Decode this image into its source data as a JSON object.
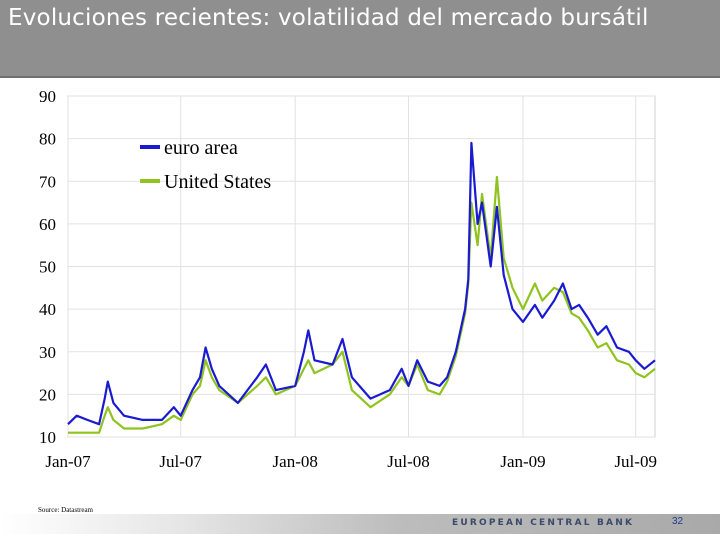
{
  "title": "Evoluciones recientes: volatilidad del mercado bursátil",
  "source": "Source: Datastream",
  "footer": {
    "bank_name": "EUROPEAN CENTRAL BANK",
    "page_number": "32"
  },
  "colors": {
    "euro_area": "#1a1ad0",
    "united_states": "#8fc31f",
    "title_bg": "#8f8f8f"
  },
  "chart_data": {
    "type": "line",
    "title": "",
    "xlabel": "",
    "ylabel": "",
    "ylim": [
      10,
      90
    ],
    "yticks": [
      10,
      20,
      30,
      40,
      50,
      60,
      70,
      80,
      90
    ],
    "xlim": [
      "2007-01-01",
      "2009-08-01"
    ],
    "xticks": [
      {
        "label": "Jan-07",
        "date": "2007-01-01"
      },
      {
        "label": "Jul-07",
        "date": "2007-07-01"
      },
      {
        "label": "Jan-08",
        "date": "2008-01-01"
      },
      {
        "label": "Jul-08",
        "date": "2008-07-01"
      },
      {
        "label": "Jan-09",
        "date": "2009-01-01"
      },
      {
        "label": "Jul-09",
        "date": "2009-07-01"
      }
    ],
    "grid": true,
    "legend": "top-left",
    "series": [
      {
        "name": "euro area",
        "color": "#1a1ad0",
        "points": [
          [
            "2007-01-01",
            13
          ],
          [
            "2007-01-15",
            15
          ],
          [
            "2007-02-01",
            14
          ],
          [
            "2007-02-20",
            13
          ],
          [
            "2007-03-01",
            19
          ],
          [
            "2007-03-06",
            23
          ],
          [
            "2007-03-15",
            18
          ],
          [
            "2007-04-01",
            15
          ],
          [
            "2007-05-01",
            14
          ],
          [
            "2007-06-01",
            14
          ],
          [
            "2007-06-20",
            17
          ],
          [
            "2007-07-01",
            15
          ],
          [
            "2007-07-20",
            21
          ],
          [
            "2007-08-01",
            24
          ],
          [
            "2007-08-10",
            31
          ],
          [
            "2007-08-20",
            26
          ],
          [
            "2007-09-01",
            22
          ],
          [
            "2007-10-01",
            18
          ],
          [
            "2007-11-01",
            24
          ],
          [
            "2007-11-15",
            27
          ],
          [
            "2007-12-01",
            21
          ],
          [
            "2008-01-01",
            22
          ],
          [
            "2008-01-15",
            30
          ],
          [
            "2008-01-22",
            35
          ],
          [
            "2008-02-01",
            28
          ],
          [
            "2008-03-01",
            27
          ],
          [
            "2008-03-17",
            33
          ],
          [
            "2008-04-01",
            24
          ],
          [
            "2008-05-01",
            19
          ],
          [
            "2008-06-01",
            21
          ],
          [
            "2008-06-20",
            26
          ],
          [
            "2008-07-01",
            22
          ],
          [
            "2008-07-15",
            28
          ],
          [
            "2008-08-01",
            23
          ],
          [
            "2008-08-20",
            22
          ],
          [
            "2008-09-01",
            24
          ],
          [
            "2008-09-15",
            30
          ],
          [
            "2008-09-30",
            40
          ],
          [
            "2008-10-05",
            47
          ],
          [
            "2008-10-10",
            79
          ],
          [
            "2008-10-20",
            60
          ],
          [
            "2008-10-27",
            65
          ],
          [
            "2008-11-10",
            50
          ],
          [
            "2008-11-20",
            64
          ],
          [
            "2008-12-01",
            48
          ],
          [
            "2008-12-15",
            40
          ],
          [
            "2009-01-01",
            37
          ],
          [
            "2009-01-20",
            41
          ],
          [
            "2009-02-01",
            38
          ],
          [
            "2009-02-20",
            42
          ],
          [
            "2009-03-06",
            46
          ],
          [
            "2009-03-20",
            40
          ],
          [
            "2009-04-01",
            41
          ],
          [
            "2009-04-15",
            38
          ],
          [
            "2009-05-01",
            34
          ],
          [
            "2009-05-15",
            36
          ],
          [
            "2009-06-01",
            31
          ],
          [
            "2009-06-20",
            30
          ],
          [
            "2009-07-01",
            28
          ],
          [
            "2009-07-15",
            26
          ],
          [
            "2009-08-01",
            28
          ]
        ]
      },
      {
        "name": "United States",
        "color": "#8fc31f",
        "points": [
          [
            "2007-01-01",
            11
          ],
          [
            "2007-01-15",
            11
          ],
          [
            "2007-02-01",
            11
          ],
          [
            "2007-02-20",
            11
          ],
          [
            "2007-03-01",
            15
          ],
          [
            "2007-03-06",
            17
          ],
          [
            "2007-03-15",
            14
          ],
          [
            "2007-04-01",
            12
          ],
          [
            "2007-05-01",
            12
          ],
          [
            "2007-06-01",
            13
          ],
          [
            "2007-06-20",
            15
          ],
          [
            "2007-07-01",
            14
          ],
          [
            "2007-07-20",
            20
          ],
          [
            "2007-08-01",
            22
          ],
          [
            "2007-08-10",
            28
          ],
          [
            "2007-08-20",
            24
          ],
          [
            "2007-09-01",
            21
          ],
          [
            "2007-10-01",
            18
          ],
          [
            "2007-11-01",
            22
          ],
          [
            "2007-11-15",
            24
          ],
          [
            "2007-12-01",
            20
          ],
          [
            "2008-01-01",
            22
          ],
          [
            "2008-01-15",
            26
          ],
          [
            "2008-01-22",
            28
          ],
          [
            "2008-02-01",
            25
          ],
          [
            "2008-03-01",
            27
          ],
          [
            "2008-03-17",
            30
          ],
          [
            "2008-04-01",
            21
          ],
          [
            "2008-05-01",
            17
          ],
          [
            "2008-06-01",
            20
          ],
          [
            "2008-06-20",
            24
          ],
          [
            "2008-07-01",
            22
          ],
          [
            "2008-07-15",
            27
          ],
          [
            "2008-08-01",
            21
          ],
          [
            "2008-08-20",
            20
          ],
          [
            "2008-09-01",
            23
          ],
          [
            "2008-09-15",
            29
          ],
          [
            "2008-09-30",
            39
          ],
          [
            "2008-10-05",
            46
          ],
          [
            "2008-10-10",
            65
          ],
          [
            "2008-10-20",
            55
          ],
          [
            "2008-10-27",
            67
          ],
          [
            "2008-11-10",
            52
          ],
          [
            "2008-11-20",
            71
          ],
          [
            "2008-12-01",
            52
          ],
          [
            "2008-12-15",
            45
          ],
          [
            "2009-01-01",
            40
          ],
          [
            "2009-01-20",
            46
          ],
          [
            "2009-02-01",
            42
          ],
          [
            "2009-02-20",
            45
          ],
          [
            "2009-03-06",
            44
          ],
          [
            "2009-03-20",
            39
          ],
          [
            "2009-04-01",
            38
          ],
          [
            "2009-04-15",
            35
          ],
          [
            "2009-05-01",
            31
          ],
          [
            "2009-05-15",
            32
          ],
          [
            "2009-06-01",
            28
          ],
          [
            "2009-06-20",
            27
          ],
          [
            "2009-07-01",
            25
          ],
          [
            "2009-07-15",
            24
          ],
          [
            "2009-08-01",
            26
          ]
        ]
      }
    ]
  }
}
